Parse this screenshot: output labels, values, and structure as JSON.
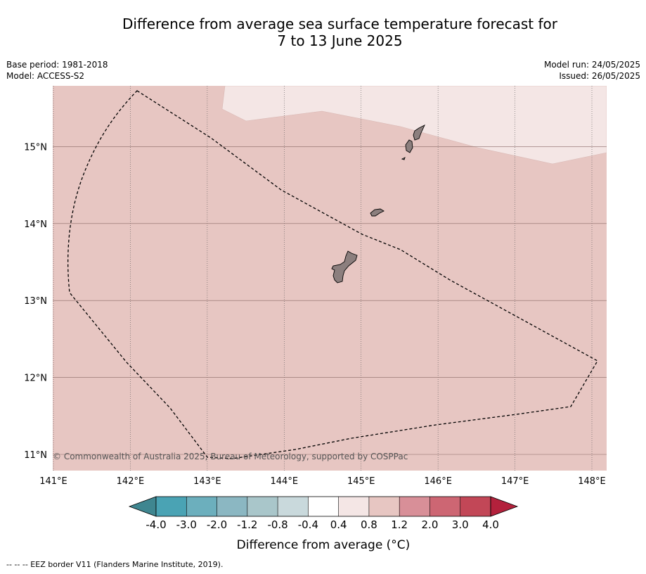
{
  "title": {
    "line1": "Difference from average sea surface temperature forecast for",
    "line2": "7 to 13 June 2025"
  },
  "meta": {
    "base_period": "Base period: 1981-2018",
    "model": "Model: ACCESS-S2",
    "model_run": "Model run: 24/05/2025",
    "issued": "Issued: 26/05/2025"
  },
  "map": {
    "lon_range": [
      141.0,
      148.2
    ],
    "lat_range": [
      10.8,
      15.8
    ],
    "lon_ticks": [
      141,
      142,
      143,
      144,
      145,
      146,
      147,
      148
    ],
    "lat_ticks": [
      11,
      12,
      13,
      14,
      15
    ],
    "lon_labels": [
      "141°E",
      "142°E",
      "143°E",
      "144°E",
      "145°E",
      "146°E",
      "147°E",
      "148°E"
    ],
    "lat_labels": [
      "11°N",
      "12°N",
      "13°N",
      "14°N",
      "15°N"
    ],
    "background_anomaly_color": "#e7c6c2",
    "light_zone_color": "#f4e6e5",
    "land_color": "#8c7f7e",
    "copyright": "© Commonwealth of Australia 2025, Bureau of Meteorology, supported by COSPPac"
  },
  "colorbar": {
    "label": "Difference from average (°C)",
    "tick_labels": [
      "-4.0",
      "-3.0",
      "-2.0",
      "-1.2",
      "-0.8",
      "-0.4",
      "0.4",
      "0.8",
      "1.2",
      "2.0",
      "3.0",
      "4.0"
    ],
    "colors": [
      "#4aa3b4",
      "#6cafbd",
      "#8bb7c2",
      "#a9c6ca",
      "#c9d9dc",
      "#ffffff",
      "#f4e6e5",
      "#e7c6c2",
      "#d88f98",
      "#cd6673",
      "#c24757"
    ],
    "under_color": "#3f8690",
    "over_color": "#b3213c"
  },
  "footnote": "--  --  -- EEZ border V11 (Flanders Marine Institute, 2019)."
}
